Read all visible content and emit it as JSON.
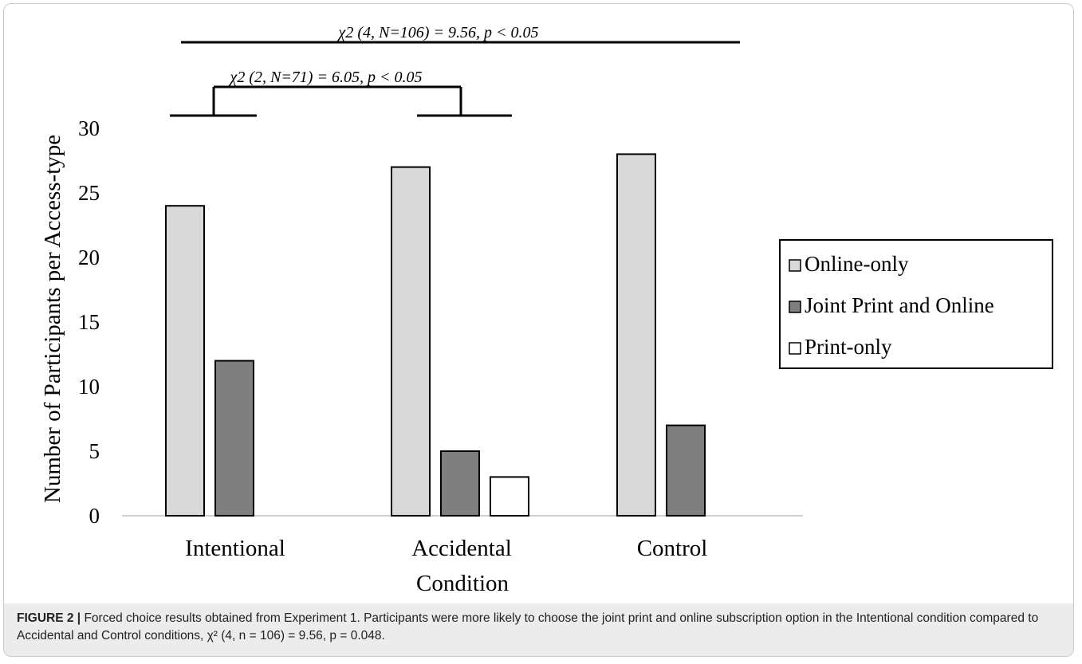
{
  "chart_data": {
    "type": "bar",
    "categories": [
      "Intentional",
      "Accidental",
      "Control"
    ],
    "series": [
      {
        "name": "Online-only",
        "values": [
          24,
          27,
          28
        ],
        "color": "#d9d9d9"
      },
      {
        "name": "Joint Print and Online",
        "values": [
          12,
          5,
          7
        ],
        "color": "#7f7f7f"
      },
      {
        "name": "Print-only",
        "values": [
          0,
          3,
          0
        ],
        "color": "#ffffff"
      }
    ],
    "xlabel": "Condition",
    "ylabel": "Number of Participants per Access-type",
    "ylim": [
      0,
      30
    ],
    "yticks": [
      "0",
      "5",
      "10",
      "15",
      "20",
      "25",
      "30"
    ],
    "grid": false,
    "legend_position": "right",
    "annotations": [
      {
        "text": "χ2 (4, N=106) = 9.56, p < 0.05",
        "groups": [
          "Intentional",
          "Control"
        ]
      },
      {
        "text": "χ2 (2, N=71) = 6.05, p < 0.05",
        "groups": [
          "Intentional",
          "Accidental"
        ]
      }
    ]
  },
  "caption": {
    "label": "FIGURE 2 |",
    "text": " Forced choice results obtained from Experiment 1. Participants were more likely to choose the joint print and online subscription option in the Intentional condition compared to Accidental and Control conditions, χ² (4, n = 106) = 9.56, p = 0.048."
  }
}
